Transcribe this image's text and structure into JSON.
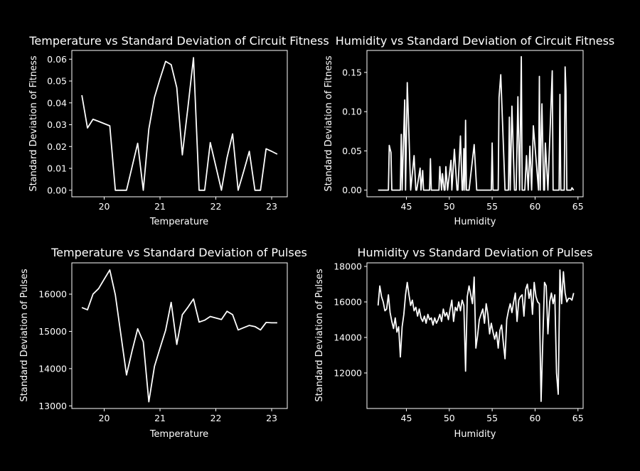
{
  "style": {
    "background": "#000000",
    "foreground": "#ffffff",
    "line_color": "#ffffff"
  },
  "chart_data": [
    {
      "type": "line",
      "title": "Temperature vs Standard Deviation of Circuit Fitness",
      "xlabel": "Temperature",
      "ylabel": "Standard Deviation of Fitness",
      "xlim": [
        19.42,
        23.28
      ],
      "ylim": [
        -0.003,
        0.064
      ],
      "xticks": [
        20,
        21,
        22,
        23
      ],
      "yticks": [
        0.0,
        0.01,
        0.02,
        0.03,
        0.04,
        0.05,
        0.06
      ],
      "ytick_decimals": 2,
      "x": [
        19.6,
        19.7,
        19.8,
        19.9,
        20.0,
        20.1,
        20.2,
        20.3,
        20.4,
        20.5,
        20.6,
        20.7,
        20.8,
        20.9,
        21.0,
        21.1,
        21.2,
        21.3,
        21.4,
        21.5,
        21.6,
        21.7,
        21.8,
        21.9,
        22.0,
        22.1,
        22.2,
        22.3,
        22.4,
        22.5,
        22.6,
        22.7,
        22.8,
        22.9,
        23.0,
        23.1
      ],
      "y": [
        0.0435,
        0.0285,
        0.0325,
        0.0315,
        0.0305,
        0.0295,
        0.0,
        0.0,
        0.0,
        0.0108,
        0.0215,
        0.0,
        0.028,
        0.0425,
        0.051,
        0.059,
        0.0575,
        0.047,
        0.0162,
        0.038,
        0.0607,
        0.0,
        0.0,
        0.0218,
        0.011,
        0.0,
        0.0148,
        0.0258,
        0.0,
        0.0088,
        0.0178,
        0.0,
        0.0,
        0.019,
        0.0178,
        0.0165
      ]
    },
    {
      "type": "line",
      "title": "Humidity vs Standard Deviation of Circuit Fitness",
      "xlabel": "Humidity",
      "ylabel": "Standard Deviation of Fitness",
      "xlim": [
        40.4,
        65.6
      ],
      "ylim": [
        -0.0085,
        0.178
      ],
      "xticks": [
        45,
        50,
        55,
        60,
        65
      ],
      "yticks": [
        0.0,
        0.05,
        0.1,
        0.15
      ],
      "ytick_decimals": 2,
      "x": [
        41.7,
        42.9,
        43.0,
        43.2,
        43.3,
        44.3,
        44.4,
        44.5,
        44.8,
        44.9,
        45.1,
        45.3,
        45.5,
        45.9,
        46.1,
        46.2,
        46.6,
        46.7,
        46.9,
        47.0,
        47.3,
        47.7,
        47.8,
        47.9,
        48.8,
        48.9,
        49.1,
        49.2,
        49.4,
        49.5,
        49.6,
        49.8,
        50.2,
        50.3,
        50.6,
        50.9,
        51.0,
        51.3,
        51.5,
        51.6,
        51.7,
        51.8,
        51.9,
        52.0,
        52.1,
        52.3,
        52.9,
        53.2,
        53.3,
        53.4,
        54.9,
        55.0,
        55.1,
        55.7,
        55.8,
        56.0,
        56.5,
        56.9,
        57.0,
        57.1,
        57.3,
        57.6,
        57.8,
        58.0,
        58.2,
        58.4,
        58.5,
        58.6,
        58.8,
        59.0,
        59.2,
        59.4,
        59.6,
        59.8,
        60.4,
        60.5,
        60.6,
        60.7,
        60.8,
        61.0,
        61.1,
        61.2,
        61.5,
        62.0,
        62.1,
        62.2,
        62.8,
        62.9,
        63.0,
        63.4,
        63.5,
        63.6,
        63.7,
        63.8,
        63.9,
        64.2,
        64.3,
        64.5
      ],
      "y": [
        0.0,
        0.0,
        0.057,
        0.048,
        0.0,
        0.0,
        0.071,
        0.0,
        0.115,
        0.0,
        0.137,
        0.07,
        0.0,
        0.044,
        0.0,
        0.0,
        0.028,
        0.0,
        0.025,
        0.0,
        0.0,
        0.0,
        0.04,
        0.0,
        0.0,
        0.03,
        0.0,
        0.021,
        0.0,
        0.0,
        0.03,
        0.0,
        0.038,
        0.0,
        0.052,
        0.0,
        0.0,
        0.069,
        0.0,
        0.0,
        0.053,
        0.0,
        0.089,
        0.0,
        0.0,
        0.0,
        0.058,
        0.0,
        0.0,
        0.0,
        0.0,
        0.06,
        0.0,
        0.0,
        0.118,
        0.147,
        0.0,
        0.0,
        0.093,
        0.0,
        0.107,
        0.0,
        0.0,
        0.119,
        0.0,
        0.17,
        0.0,
        0.0,
        0.0,
        0.044,
        0.0,
        0.056,
        0.0,
        0.082,
        0.0,
        0.145,
        0.0,
        0.062,
        0.11,
        0.0,
        0.0,
        0.06,
        0.0,
        0.152,
        0.0,
        0.0,
        0.0,
        0.122,
        0.0,
        0.0,
        0.157,
        0.127,
        0.0,
        0.0,
        0.0,
        0.0,
        0.003,
        0.0
      ]
    },
    {
      "type": "line",
      "title": "Temperature vs Standard Deviation of Pulses",
      "xlabel": "Temperature",
      "ylabel": "Standard Deviation of Pulses",
      "xlim": [
        19.42,
        23.28
      ],
      "ylim": [
        12930,
        16840
      ],
      "xticks": [
        20,
        21,
        22,
        23
      ],
      "yticks": [
        13000,
        14000,
        15000,
        16000
      ],
      "ytick_decimals": 0,
      "x": [
        19.6,
        19.7,
        19.8,
        19.9,
        20.0,
        20.1,
        20.2,
        20.3,
        20.4,
        20.5,
        20.6,
        20.7,
        20.8,
        20.9,
        21.0,
        21.1,
        21.2,
        21.3,
        21.4,
        21.5,
        21.6,
        21.7,
        21.8,
        21.9,
        22.0,
        22.1,
        22.2,
        22.3,
        22.4,
        22.5,
        22.6,
        22.7,
        22.8,
        22.9,
        23.0,
        23.1
      ],
      "y": [
        15640,
        15580,
        16000,
        16150,
        16400,
        16650,
        15980,
        14900,
        13830,
        14480,
        15070,
        14720,
        13110,
        14060,
        14550,
        15030,
        15780,
        14650,
        15450,
        15650,
        15870,
        15250,
        15300,
        15400,
        15360,
        15320,
        15540,
        15450,
        15040,
        15100,
        15160,
        15130,
        15040,
        15240,
        15230,
        15230
      ]
    },
    {
      "type": "line",
      "title": "Humidity vs Standard Deviation of Pulses",
      "xlabel": "Humidity",
      "ylabel": "Standard Deviation of Pulses",
      "xlim": [
        40.4,
        65.6
      ],
      "ylim": [
        10000,
        18200
      ],
      "xticks": [
        45,
        50,
        55,
        60,
        65
      ],
      "yticks": [
        12000,
        14000,
        16000,
        18000
      ],
      "ytick_decimals": 0,
      "x": [
        41.7,
        41.9,
        42.1,
        42.3,
        42.5,
        42.7,
        42.9,
        43.1,
        43.3,
        43.5,
        43.7,
        43.9,
        44.1,
        44.3,
        44.5,
        44.7,
        44.9,
        45.1,
        45.3,
        45.5,
        45.7,
        45.9,
        46.1,
        46.3,
        46.5,
        46.7,
        46.9,
        47.1,
        47.3,
        47.5,
        47.7,
        47.9,
        48.1,
        48.3,
        48.5,
        48.7,
        48.9,
        49.1,
        49.3,
        49.5,
        49.7,
        49.9,
        50.1,
        50.3,
        50.5,
        50.7,
        50.9,
        51.1,
        51.3,
        51.5,
        51.7,
        51.9,
        52.1,
        52.3,
        52.5,
        52.7,
        52.9,
        53.1,
        53.3,
        53.5,
        53.7,
        53.9,
        54.1,
        54.3,
        54.5,
        54.7,
        54.9,
        55.1,
        55.3,
        55.5,
        55.7,
        55.9,
        56.1,
        56.3,
        56.5,
        56.7,
        56.9,
        57.1,
        57.3,
        57.5,
        57.7,
        57.9,
        58.1,
        58.3,
        58.5,
        58.7,
        58.9,
        59.1,
        59.3,
        59.5,
        59.7,
        59.9,
        60.1,
        60.3,
        60.5,
        60.7,
        60.9,
        61.1,
        61.3,
        61.5,
        61.7,
        61.9,
        62.1,
        62.3,
        62.5,
        62.7,
        62.9,
        63.1,
        63.3,
        63.5,
        63.7,
        63.9,
        64.1,
        64.3,
        64.5
      ],
      "y": [
        15800,
        16900,
        16300,
        16000,
        15500,
        15600,
        16400,
        15400,
        14900,
        14500,
        15100,
        14300,
        14600,
        12900,
        14600,
        15300,
        16400,
        17100,
        16400,
        15800,
        16100,
        15500,
        15700,
        15200,
        15600,
        15100,
        14900,
        15200,
        14800,
        15300,
        15000,
        15100,
        14700,
        15100,
        14800,
        15000,
        15300,
        14900,
        15600,
        15200,
        15400,
        15000,
        15600,
        16100,
        14900,
        15700,
        15500,
        16000,
        15500,
        16100,
        15800,
        12100,
        16300,
        16900,
        16400,
        15900,
        17400,
        13400,
        14100,
        15000,
        15300,
        15600,
        14800,
        15900,
        15300,
        14200,
        14800,
        14300,
        13900,
        14300,
        13400,
        14400,
        14700,
        13700,
        12800,
        15000,
        15500,
        15900,
        15400,
        16000,
        16500,
        14900,
        16100,
        16300,
        16400,
        15200,
        16700,
        17000,
        16200,
        16700,
        15300,
        17100,
        16300,
        16000,
        15900,
        10400,
        13800,
        17100,
        16900,
        14200,
        16000,
        16500,
        15900,
        16400,
        12000,
        10800,
        17800,
        15900,
        17700,
        16500,
        16000,
        16200,
        16200,
        16100,
        16500
      ]
    }
  ]
}
